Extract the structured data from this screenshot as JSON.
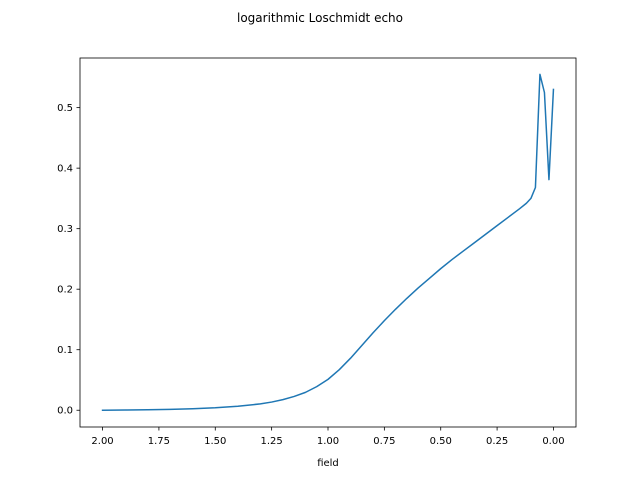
{
  "chart_data": {
    "type": "line",
    "title": "logarithmic Loschmidt echo",
    "xlabel": "field",
    "ylabel": "",
    "x_axis_inverted": true,
    "xlim": [
      2.1,
      -0.1
    ],
    "ylim": [
      -0.0277,
      0.582
    ],
    "xticks": [
      2.0,
      1.75,
      1.5,
      1.25,
      1.0,
      0.75,
      0.5,
      0.25,
      0.0
    ],
    "xtick_labels": [
      "2.00",
      "1.75",
      "1.50",
      "1.25",
      "1.00",
      "0.75",
      "0.50",
      "0.25",
      "0.00"
    ],
    "yticks": [
      0.0,
      0.1,
      0.2,
      0.3,
      0.4,
      0.5
    ],
    "ytick_labels": [
      "0.0",
      "0.1",
      "0.2",
      "0.3",
      "0.4",
      "0.5"
    ],
    "grid": false,
    "series": [
      {
        "color": "#1f77b4",
        "x": [
          2.0,
          1.9,
          1.8,
          1.7,
          1.6,
          1.5,
          1.4,
          1.3,
          1.25,
          1.2,
          1.15,
          1.1,
          1.05,
          1.0,
          0.95,
          0.9,
          0.85,
          0.8,
          0.75,
          0.7,
          0.65,
          0.6,
          0.55,
          0.5,
          0.45,
          0.4,
          0.35,
          0.3,
          0.25,
          0.2,
          0.15,
          0.12,
          0.1,
          0.08,
          0.06,
          0.04,
          0.02,
          0.0
        ],
        "y": [
          0.0,
          0.0004,
          0.0008,
          0.0014,
          0.0024,
          0.004,
          0.0065,
          0.0105,
          0.0135,
          0.0175,
          0.0228,
          0.0295,
          0.039,
          0.051,
          0.067,
          0.086,
          0.107,
          0.128,
          0.148,
          0.167,
          0.185,
          0.202,
          0.218,
          0.234,
          0.249,
          0.263,
          0.277,
          0.291,
          0.305,
          0.319,
          0.333,
          0.342,
          0.35,
          0.368,
          0.555,
          0.525,
          0.381,
          0.53
        ]
      }
    ]
  }
}
